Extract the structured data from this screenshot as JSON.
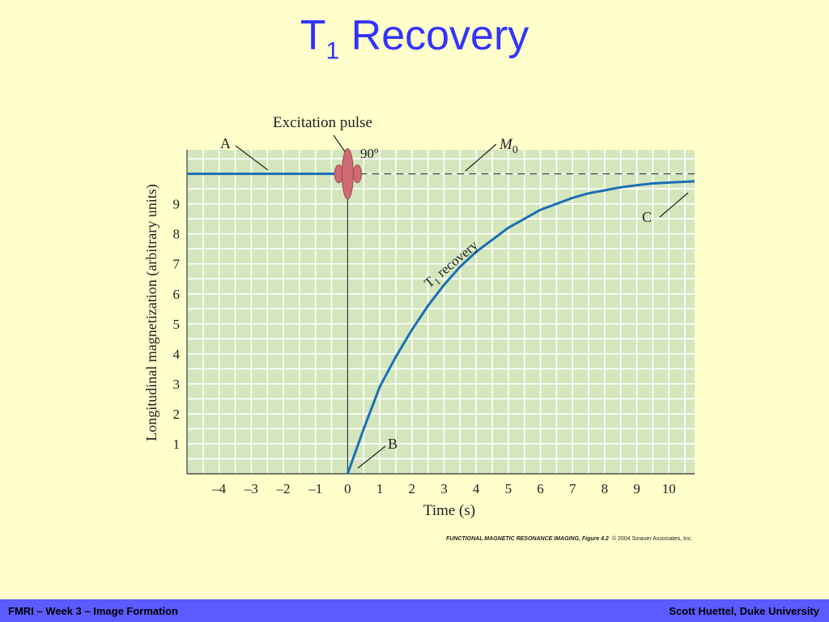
{
  "slide": {
    "title_main": "T",
    "title_sub": "1",
    "title_rest": " Recovery",
    "title_color": "#3333ff"
  },
  "chart_data": {
    "type": "line",
    "ylabel": "Longitudinal magnetization (arbitrary units)",
    "xlabel": "Time (s)",
    "xlim": [
      -5,
      10.8
    ],
    "ylim": [
      0,
      10.8
    ],
    "x_ticks": [
      "–4",
      "–3",
      "–2",
      "–1",
      "0",
      "1",
      "2",
      "3",
      "4",
      "5",
      "6",
      "7",
      "8",
      "9",
      "10"
    ],
    "x_tick_values": [
      -4,
      -3,
      -2,
      -1,
      0,
      1,
      2,
      3,
      4,
      5,
      6,
      7,
      8,
      9,
      10
    ],
    "y_ticks": [
      "1",
      "2",
      "3",
      "4",
      "5",
      "6",
      "7",
      "8",
      "9"
    ],
    "y_tick_values": [
      1,
      2,
      3,
      4,
      5,
      6,
      7,
      8,
      9
    ],
    "grid": true,
    "m0_value": 10,
    "pre_pulse": {
      "x": [
        -5,
        0
      ],
      "y": [
        10,
        10
      ]
    },
    "recovery": {
      "name": "T1 recovery",
      "x": [
        0,
        0.5,
        1,
        1.5,
        2,
        2.5,
        3,
        3.5,
        4,
        4.5,
        5,
        5.5,
        6,
        6.5,
        7,
        7.5,
        8,
        8.5,
        9,
        9.5,
        10,
        10.8
      ],
      "y": [
        0,
        1.5,
        2.9,
        3.9,
        4.8,
        5.6,
        6.3,
        6.9,
        7.4,
        7.8,
        8.2,
        8.5,
        8.8,
        9.0,
        9.2,
        9.35,
        9.45,
        9.55,
        9.62,
        9.68,
        9.71,
        9.75
      ]
    },
    "pulse_x": 0,
    "annotations": {
      "excitation": "Excitation pulse",
      "angle": "90º",
      "label_a": "A",
      "label_b": "B",
      "label_c": "C",
      "m0_symbol": "M",
      "m0_sub": "0",
      "t1_main": "T",
      "t1_sub": "1",
      "t1_rest": " recovery"
    },
    "colors": {
      "plot_bg": "#d4e6bc",
      "grid": "#ffffff",
      "curve": "#1a6fb5",
      "pulse": "#cf6b74",
      "text": "#222222"
    }
  },
  "credit": {
    "figure_source": "FUNCTIONAL MAGNETIC RESONANCE IMAGING, Figure 4.2",
    "copyright": "© 2004 Sinauer Associates, Inc."
  },
  "footer": {
    "left": "FMRI – Week 3 – Image Formation",
    "right": "Scott Huettel, Duke University",
    "bg_color": "#5b5bff"
  }
}
